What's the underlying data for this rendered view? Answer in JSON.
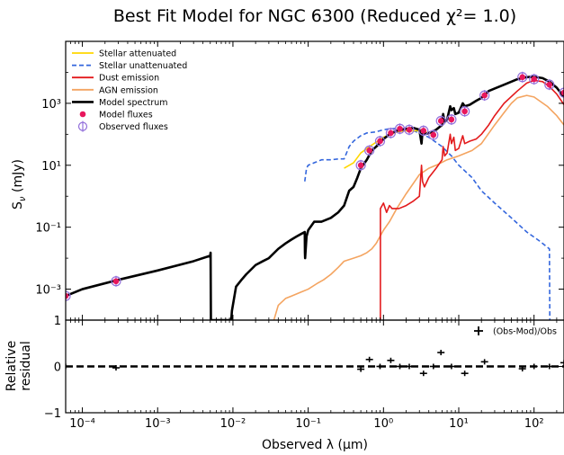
{
  "chart_data": {
    "type": "line",
    "title": "Best Fit Model for NGC 6300 (Reduced χ²= 1.0)",
    "xlabel": "Observed λ (μm)",
    "x_scale": "log",
    "xlim": [
      6e-05,
      250
    ],
    "x_ticks": [
      0.0001,
      0.001,
      0.01,
      0.1,
      1,
      10,
      100
    ],
    "x_tick_labels": [
      "10⁻⁴",
      "10⁻³",
      "10⁻²",
      "10⁻¹",
      "10⁰",
      "10¹",
      "10²"
    ],
    "sed": {
      "ylabel": "Sν (mJy)",
      "y_scale": "log",
      "ylim": [
        0.0001,
        100000
      ],
      "y_ticks": [
        0.001,
        0.1,
        10,
        1000
      ],
      "y_tick_labels": [
        "10⁻³",
        "10⁻¹",
        "10¹",
        "10³"
      ],
      "legend_location": "upper left",
      "series": [
        {
          "name": "Stellar attenuated",
          "color": "#ffd700",
          "style": "solid",
          "x": [
            0.3,
            0.4,
            0.5,
            0.7,
            1,
            1.5,
            2,
            3,
            4,
            5
          ],
          "y": [
            8,
            12,
            25,
            45,
            80,
            120,
            130,
            130,
            110,
            95
          ]
        },
        {
          "name": "Stellar unattenuated",
          "color": "#3366dd",
          "style": "dashed",
          "x": [
            0.09,
            0.095,
            0.1,
            0.12,
            0.15,
            0.2,
            0.25,
            0.3,
            0.35,
            0.4,
            0.5,
            0.6,
            0.8,
            1.0,
            1.2,
            1.5,
            2,
            2.5,
            3,
            4,
            5,
            6,
            8,
            10,
            15,
            20,
            30,
            50,
            80,
            120,
            160,
            162
          ],
          "y": [
            3,
            8,
            10,
            12,
            15,
            15,
            16,
            16,
            40,
            60,
            90,
            110,
            120,
            140,
            150,
            155,
            150,
            130,
            110,
            80,
            55,
            40,
            20,
            10,
            4,
            1.5,
            0.6,
            0.2,
            0.07,
            0.035,
            0.02,
            0.0001
          ]
        },
        {
          "name": "Dust emission",
          "color": "#e31a1c",
          "style": "solid",
          "x": [
            0.91,
            0.911,
            1.0,
            1.1,
            1.2,
            1.3,
            1.4,
            1.6,
            2,
            2.5,
            3,
            3.2,
            3.3,
            3.5,
            4,
            5,
            6,
            6.2,
            6.5,
            7,
            7.7,
            8,
            8.6,
            9,
            10,
            11.3,
            12,
            14,
            17,
            20,
            25,
            30,
            40,
            60,
            80,
            100,
            130,
            160,
            200,
            250
          ],
          "y": [
            0.0001,
            0.4,
            0.6,
            0.3,
            0.5,
            0.4,
            0.4,
            0.4,
            0.5,
            0.7,
            1.0,
            10,
            3,
            2,
            4,
            8,
            15,
            40,
            20,
            25,
            100,
            50,
            80,
            30,
            35,
            90,
            50,
            60,
            70,
            100,
            200,
            400,
            1000,
            2500,
            4500,
            5500,
            5000,
            3500,
            2000,
            900
          ]
        },
        {
          "name": "AGN emission",
          "color": "#f4a460",
          "style": "solid",
          "x": [
            0.035,
            0.04,
            0.05,
            0.06,
            0.08,
            0.1,
            0.13,
            0.16,
            0.2,
            0.25,
            0.3,
            0.4,
            0.5,
            0.6,
            0.7,
            0.8,
            1.0,
            1.2,
            1.5,
            2,
            3,
            4,
            5,
            7,
            10,
            15,
            20,
            30,
            40,
            50,
            60,
            80,
            100,
            150,
            200,
            250
          ],
          "y": [
            0.0001,
            0.0003,
            0.0005,
            0.0006,
            0.0008,
            0.001,
            0.0015,
            0.002,
            0.003,
            0.005,
            0.008,
            0.01,
            0.012,
            0.015,
            0.02,
            0.03,
            0.08,
            0.15,
            0.4,
            1.2,
            5,
            8,
            10,
            15,
            20,
            30,
            50,
            200,
            500,
            1000,
            1500,
            1800,
            1600,
            800,
            400,
            200
          ]
        },
        {
          "name": "Model spectrum",
          "color": "#000000",
          "style": "solid",
          "x": [
            6e-05,
            0.0001,
            0.0003,
            0.001,
            0.003,
            0.005,
            0.00505,
            0.0051,
            0.0095,
            0.0097,
            0.011,
            0.013,
            0.015,
            0.02,
            0.025,
            0.03,
            0.04,
            0.05,
            0.06,
            0.07,
            0.08,
            0.09,
            0.0905,
            0.091,
            0.095,
            0.1,
            0.12,
            0.15,
            0.2,
            0.25,
            0.3,
            0.35,
            0.4,
            0.45,
            0.5,
            0.6,
            0.7,
            0.8,
            1.0,
            1.2,
            1.5,
            2,
            2.5,
            3,
            3.2,
            3.3,
            3.5,
            4,
            5,
            6,
            6.2,
            6.5,
            7,
            7.7,
            8,
            8.6,
            9,
            10,
            11.3,
            12,
            14,
            17,
            20,
            25,
            30,
            40,
            60,
            80,
            100,
            130,
            160,
            200,
            250
          ],
          "y": [
            0.0006,
            0.001,
            0.002,
            0.004,
            0.008,
            0.012,
            0.015,
            0.0001,
            0.0001,
            0.0002,
            0.0012,
            0.002,
            0.003,
            0.006,
            0.008,
            0.01,
            0.02,
            0.03,
            0.04,
            0.05,
            0.06,
            0.07,
            0.015,
            0.01,
            0.05,
            0.08,
            0.15,
            0.15,
            0.2,
            0.3,
            0.5,
            1.5,
            2,
            4,
            8,
            15,
            30,
            40,
            70,
            100,
            130,
            150,
            160,
            140,
            50,
            120,
            100,
            110,
            140,
            200,
            450,
            250,
            300,
            800,
            600,
            700,
            450,
            500,
            1000,
            800,
            900,
            1200,
            1500,
            2500,
            3000,
            4000,
            6000,
            7000,
            7200,
            6500,
            5000,
            3200,
            1600
          ]
        },
        {
          "name": "Model fluxes",
          "color": "#e8175d",
          "style": "marker",
          "marker": "circle",
          "x": [
            6e-05,
            0.00028,
            0.5,
            0.65,
            0.9,
            1.25,
            1.65,
            2.2,
            3.4,
            4.6,
            5.8,
            8,
            12,
            22,
            70,
            100,
            160,
            250
          ],
          "y": [
            0.0006,
            0.0018,
            10,
            30,
            60,
            110,
            150,
            140,
            130,
            95,
            270,
            300,
            550,
            1800,
            7000,
            6000,
            4000,
            2200
          ]
        },
        {
          "name": "Observed fluxes",
          "color": "#9370db",
          "style": "marker",
          "marker": "errorbar",
          "x": [
            6e-05,
            0.00028,
            0.5,
            0.65,
            0.9,
            1.25,
            1.65,
            2.2,
            3.4,
            4.6,
            5.8,
            8,
            12,
            22,
            70,
            100,
            160,
            250
          ],
          "y": [
            0.0006,
            0.0018,
            10,
            30,
            60,
            110,
            150,
            140,
            130,
            95,
            270,
            300,
            550,
            1800,
            7000,
            6000,
            4000,
            2200
          ]
        }
      ]
    },
    "residual": {
      "ylabel": "Relative residual",
      "ylim": [
        -1,
        1
      ],
      "y_ticks": [
        -1,
        0,
        1
      ],
      "y_tick_labels": [
        "−1",
        "0",
        "1"
      ],
      "zero_line": 0,
      "legend": "(Obs-Mod)/Obs",
      "series": [
        {
          "name": "(Obs-Mod)/Obs",
          "x": [
            6e-05,
            0.00028,
            0.5,
            0.65,
            0.9,
            1.25,
            1.65,
            2.2,
            3.4,
            4.6,
            5.8,
            8,
            12,
            22,
            70,
            100,
            160,
            250
          ],
          "y": [
            0.0,
            -0.03,
            -0.06,
            0.15,
            0.0,
            0.13,
            0.0,
            0.0,
            -0.15,
            0.0,
            0.3,
            0.0,
            -0.15,
            0.1,
            -0.05,
            0.0,
            0.0,
            0.08
          ]
        }
      ]
    }
  }
}
